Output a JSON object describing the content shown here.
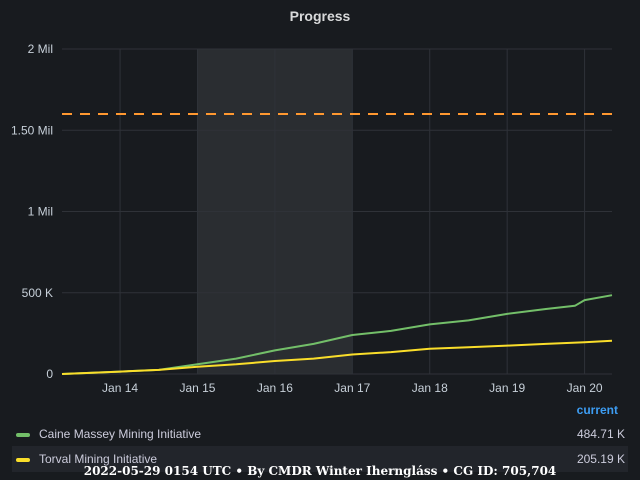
{
  "panel": {
    "title": "Progress"
  },
  "chart_data": {
    "type": "line",
    "title": "Progress",
    "x_axis": {
      "type": "date",
      "ticks": [
        "Jan 14",
        "Jan 15",
        "Jan 16",
        "Jan 17",
        "Jan 18",
        "Jan 19",
        "Jan 20"
      ],
      "range_days": [
        "2022-01-13T06:00",
        "2022-01-20T08:30"
      ]
    },
    "y_axis": {
      "ticks": [
        "0",
        "500 K",
        "1 Mil",
        "1.50 Mil",
        "2 Mil"
      ],
      "tick_values": [
        0,
        500000,
        1000000,
        1500000,
        2000000
      ],
      "ylim": [
        0,
        2000000
      ]
    },
    "grid": true,
    "threshold": {
      "value": 1600000,
      "color": "#ff9830",
      "style": "dashed"
    },
    "highlight_region": {
      "from": "2022-01-15T00:00",
      "to": "2022-01-17T00:00"
    },
    "series": [
      {
        "name": "Caine Massey Mining Initiative",
        "color": "#73bf69",
        "current": "484.71 K",
        "points": [
          [
            "2022-01-13T06:00",
            0
          ],
          [
            "2022-01-14T00:00",
            15000
          ],
          [
            "2022-01-14T12:00",
            25000
          ],
          [
            "2022-01-15T00:00",
            60000
          ],
          [
            "2022-01-15T12:00",
            95000
          ],
          [
            "2022-01-16T00:00",
            145000
          ],
          [
            "2022-01-16T12:00",
            185000
          ],
          [
            "2022-01-17T00:00",
            240000
          ],
          [
            "2022-01-17T12:00",
            265000
          ],
          [
            "2022-01-18T00:00",
            305000
          ],
          [
            "2022-01-18T12:00",
            330000
          ],
          [
            "2022-01-19T00:00",
            370000
          ],
          [
            "2022-01-19T12:00",
            400000
          ],
          [
            "2022-01-19T21:00",
            420000
          ],
          [
            "2022-01-20T00:00",
            455000
          ],
          [
            "2022-01-20T08:30",
            484710
          ]
        ]
      },
      {
        "name": "Torval Mining Initiative",
        "color": "#fade2a",
        "current": "205.19 K",
        "points": [
          [
            "2022-01-13T06:00",
            0
          ],
          [
            "2022-01-14T00:00",
            15000
          ],
          [
            "2022-01-14T12:00",
            25000
          ],
          [
            "2022-01-15T00:00",
            45000
          ],
          [
            "2022-01-15T12:00",
            60000
          ],
          [
            "2022-01-16T00:00",
            80000
          ],
          [
            "2022-01-16T12:00",
            95000
          ],
          [
            "2022-01-17T00:00",
            120000
          ],
          [
            "2022-01-17T12:00",
            135000
          ],
          [
            "2022-01-18T00:00",
            155000
          ],
          [
            "2022-01-18T12:00",
            165000
          ],
          [
            "2022-01-19T00:00",
            175000
          ],
          [
            "2022-01-19T12:00",
            185000
          ],
          [
            "2022-01-20T00:00",
            195000
          ],
          [
            "2022-01-20T08:30",
            205190
          ]
        ]
      }
    ]
  },
  "legend": {
    "header": "current",
    "items": [
      {
        "name": "Caine Massey Mining Initiative",
        "value": "484.71 K",
        "color": "#73bf69"
      },
      {
        "name": "Torval Mining Initiative",
        "value": "205.19 K",
        "color": "#fade2a"
      }
    ]
  },
  "footer": {
    "text": "2022-05-29 0154 UTC • By CMDR Winter Iherngláss • CG ID: 705,704"
  }
}
